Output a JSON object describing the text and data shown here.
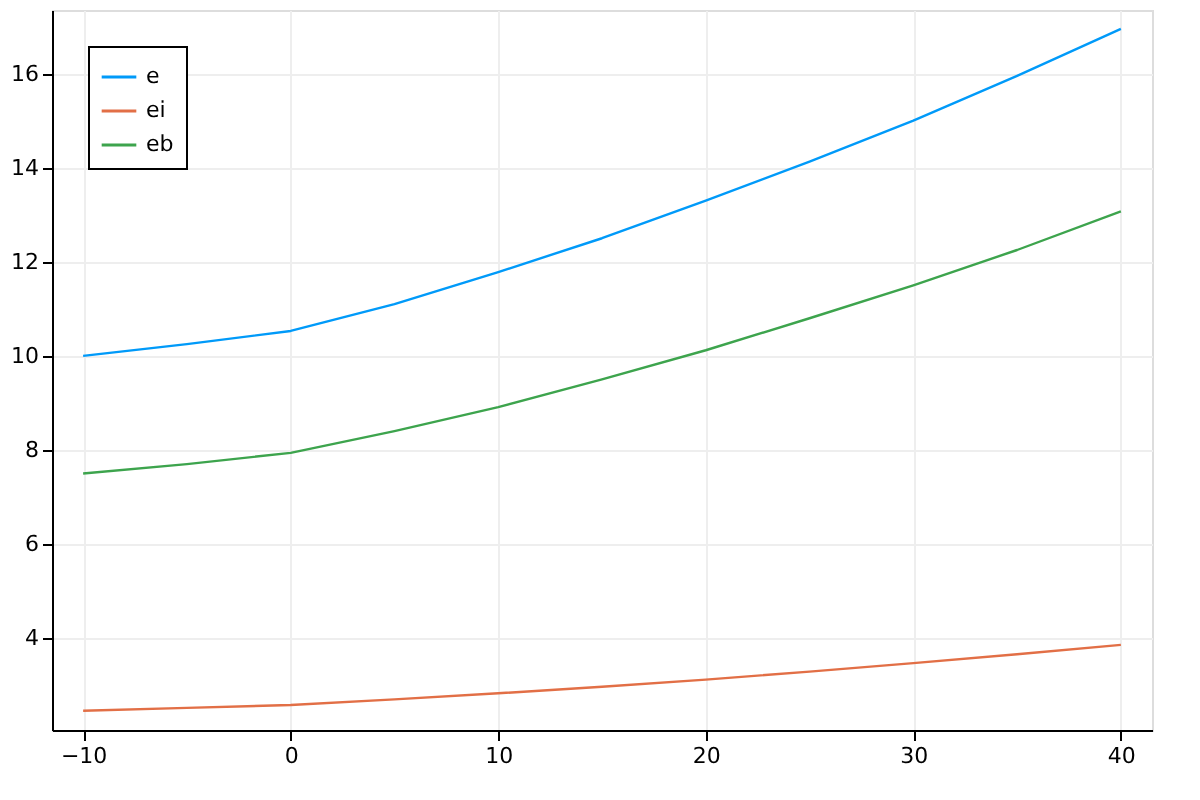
{
  "chart_data": {
    "type": "line",
    "x": [
      -10,
      -5,
      0,
      5,
      10,
      15,
      20,
      25,
      30,
      35,
      40
    ],
    "series": [
      {
        "name": "e",
        "color": "#009af9",
        "values": [
          10.0,
          10.25,
          10.53,
          11.1,
          11.78,
          12.5,
          13.3,
          14.13,
          15.0,
          15.95,
          16.95
        ]
      },
      {
        "name": "ei",
        "color": "#e26f46",
        "values": [
          2.46,
          2.52,
          2.58,
          2.7,
          2.83,
          2.97,
          3.12,
          3.29,
          3.47,
          3.66,
          3.86
        ]
      },
      {
        "name": "eb",
        "color": "#3da44d",
        "values": [
          7.5,
          7.7,
          7.94,
          8.4,
          8.91,
          9.5,
          10.12,
          10.8,
          11.5,
          12.25,
          13.07
        ]
      }
    ],
    "xlim": [
      -11.5,
      41.5
    ],
    "xticks": [
      -10,
      0,
      10,
      20,
      30,
      40
    ],
    "ylim": [
      2.05,
      17.35
    ],
    "yticks": [
      4,
      6,
      8,
      10,
      12,
      14,
      16
    ],
    "grid": true,
    "legend": "top left",
    "line_style": "solid"
  }
}
